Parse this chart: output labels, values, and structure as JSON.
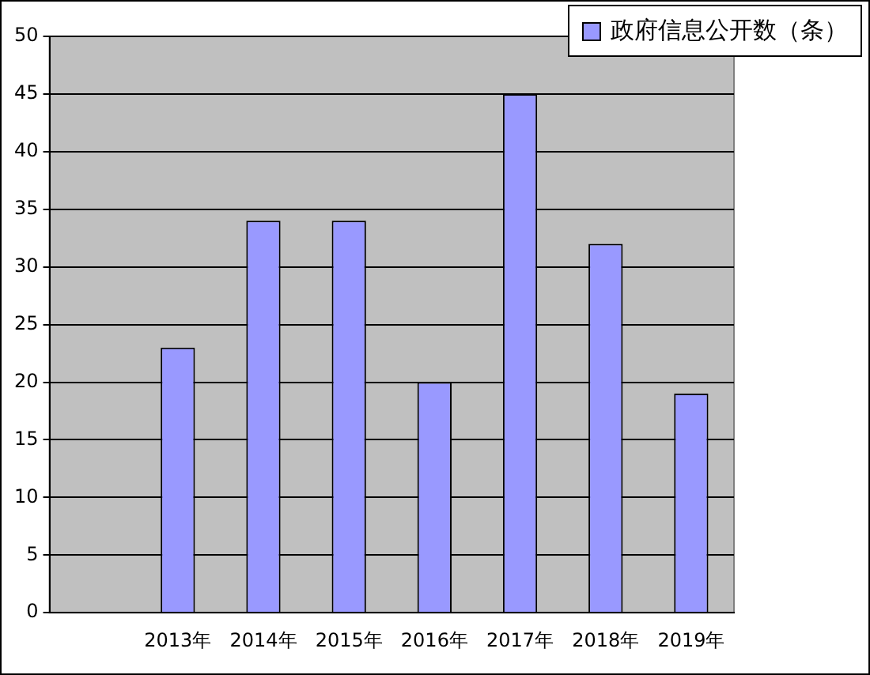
{
  "chart_data": {
    "type": "bar",
    "categories": [
      null,
      "2013年",
      "2014年",
      "2015年",
      "2016年",
      "2017年",
      "2018年",
      "2019年"
    ],
    "series": [
      {
        "name": "政府信息公开数（条）",
        "color": "#9999ff",
        "values": [
          null,
          23,
          34,
          34,
          20,
          45,
          32,
          19
        ]
      }
    ],
    "ylim": [
      0,
      50
    ],
    "yticks": [
      0,
      5,
      10,
      15,
      20,
      25,
      30,
      35,
      40,
      45,
      50
    ],
    "grid": "y",
    "legend": "top right"
  }
}
